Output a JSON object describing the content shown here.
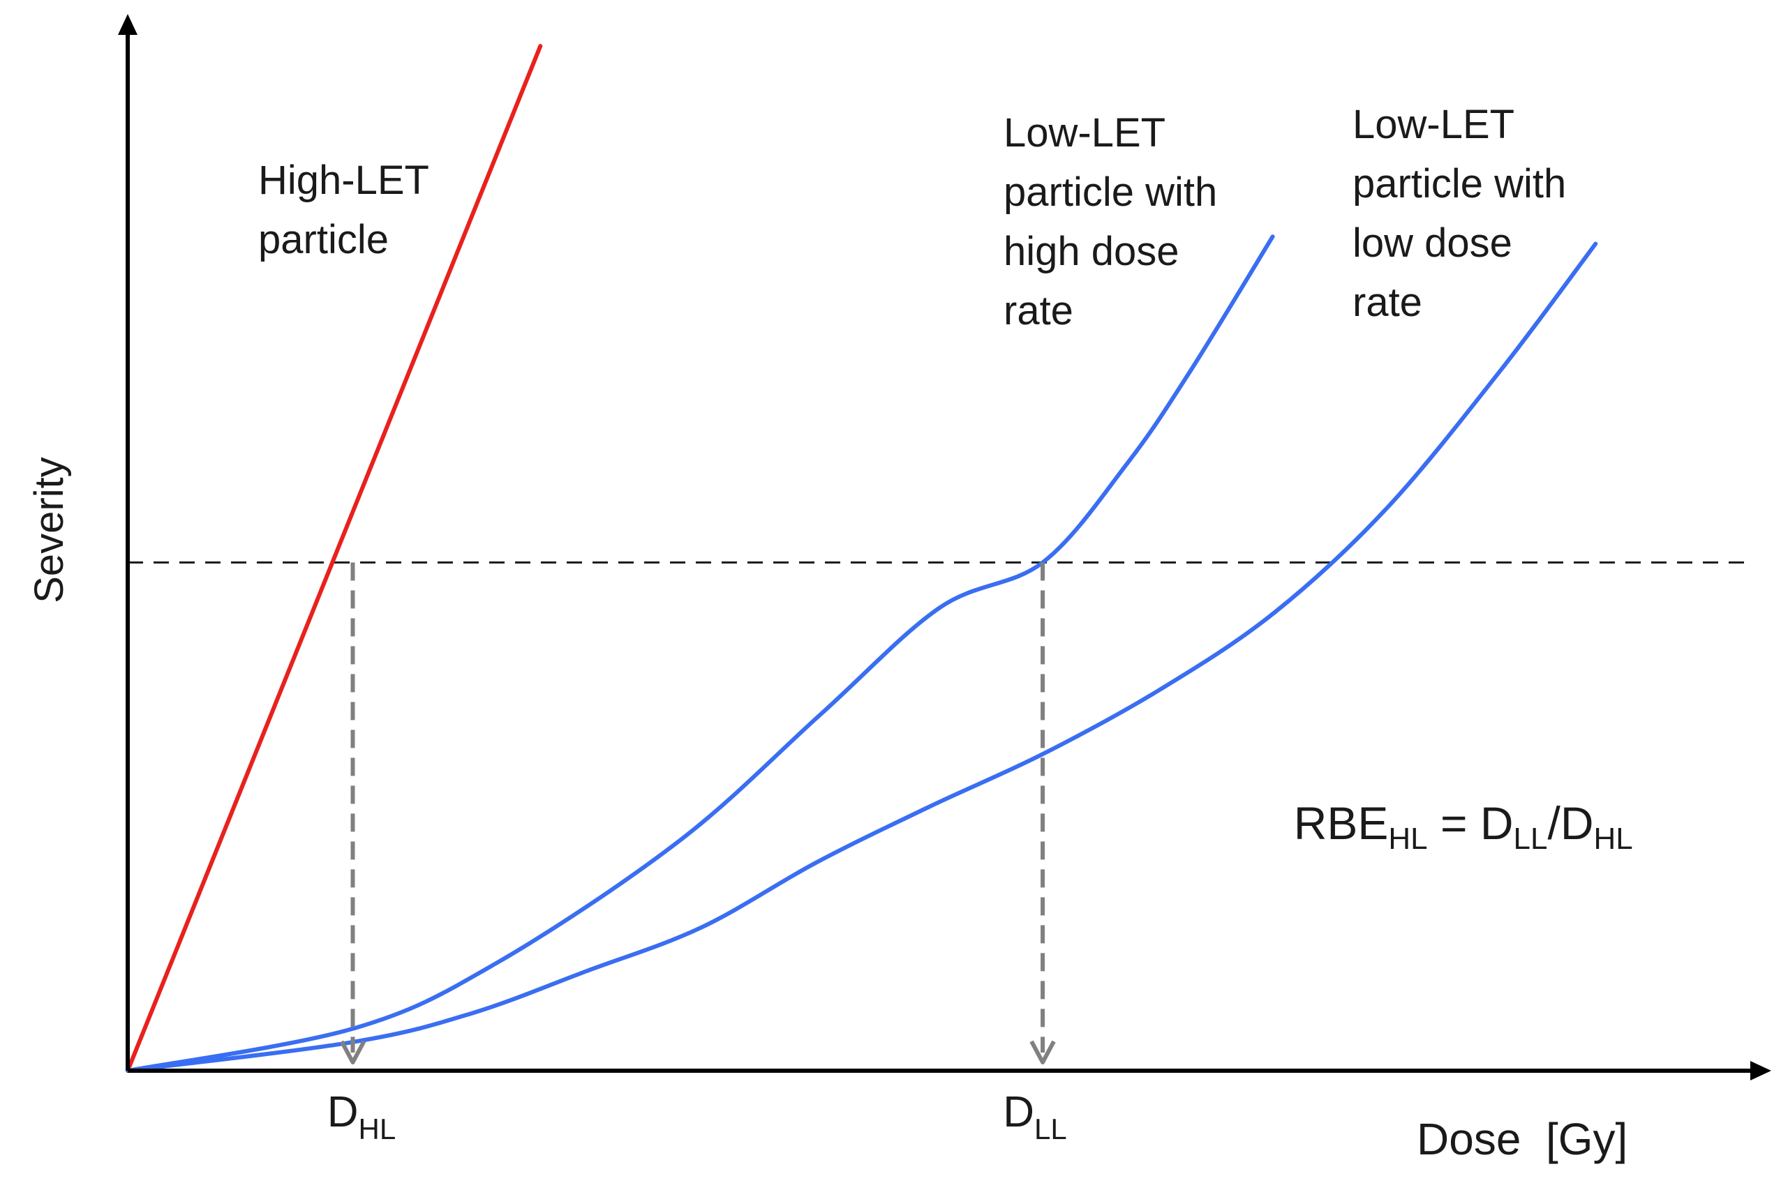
{
  "chart_data": {
    "type": "line",
    "title": "",
    "xlabel": "Dose  [Gy]",
    "ylabel": "Severity",
    "xlim": [
      0,
      100
    ],
    "ylim": [
      0,
      100
    ],
    "grid": false,
    "x_ticks": [
      {
        "main": "D",
        "sub": "HL",
        "x": 13.8
      },
      {
        "main": "D",
        "sub": "LL",
        "x": 56.1
      }
    ],
    "series": [
      {
        "name": "High-LET particle",
        "color": "#e8211d",
        "label_lines": [
          "High-LET",
          "particle"
        ],
        "x": [
          0,
          25.3
        ],
        "y": [
          0,
          100
        ]
      },
      {
        "name": "Low-LET particle with high dose rate",
        "color": "#3a6ef2",
        "label_lines": [
          "Low-LET",
          "particle with",
          "high dose",
          "rate"
        ],
        "x": [
          0,
          13.8,
          22.5,
          33.8,
          42.5,
          49.8,
          56.1,
          61.3,
          65.2,
          70.2
        ],
        "y": [
          0,
          4.1,
          10.4,
          22.4,
          34.8,
          45.2,
          49.6,
          59.3,
          68.4,
          81.4
        ]
      },
      {
        "name": "Low-LET particle with low dose rate",
        "color": "#3a6ef2",
        "label_lines": [
          "Low-LET",
          "particle with",
          "low dose",
          "rate"
        ],
        "x": [
          0,
          13.8,
          21.1,
          28.1,
          35.2,
          42.2,
          49.2,
          56.1,
          63.3,
          70.3,
          77.2,
          84.2,
          90.0
        ],
        "y": [
          0,
          2.8,
          5.6,
          9.7,
          14.0,
          20.3,
          25.8,
          30.9,
          37.2,
          44.7,
          54.9,
          68.4,
          80.7
        ]
      }
    ],
    "reference": {
      "severity": 49.6,
      "color": "#1a1a1a"
    },
    "drop_lines": [
      {
        "x": 13.8,
        "from_y": 49.6
      },
      {
        "x": 56.1,
        "from_y": 49.6
      }
    ],
    "drop_color": "#808080",
    "annotation": {
      "parts": [
        {
          "text": "RBE",
          "sub": false
        },
        {
          "text": "HL",
          "sub": true
        },
        {
          "text": " = D",
          "sub": false
        },
        {
          "text": "LL",
          "sub": true
        },
        {
          "text": "/D",
          "sub": false
        },
        {
          "text": "HL",
          "sub": true
        }
      ]
    }
  }
}
